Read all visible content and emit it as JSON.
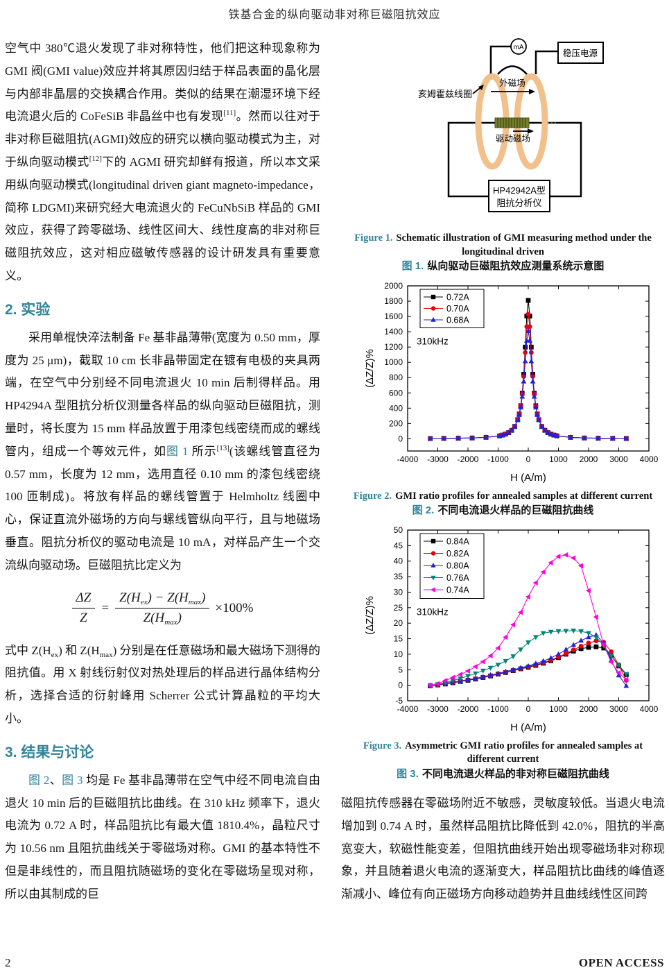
{
  "theme": {
    "accent_color": "#31849B"
  },
  "header": {
    "title": "铁基合金的纵向驱动非对称巨磁阻抗效应"
  },
  "footer": {
    "page_number": "2",
    "open_access": "OPEN ACCESS"
  },
  "left_column": {
    "flow": [
      {
        "type": "p",
        "indent": false,
        "segments": [
          {
            "text": "空气中 380℃退火发现了非对称特性，他们把这种现象称为 GMI 阀(GMI value)效应并将其原因归结于样品表面的晶化层与内部非晶层的交换耦合作用。类似的结果在潮湿环境下经电流退火后的 CoFeSiB 非晶丝中也有发现"
          },
          {
            "text": "[11]",
            "sup": true
          },
          {
            "text": "。然而以往对于非对称巨磁阻抗(AGMI)效应的研究以横向驱动模式为主，对于纵向驱动模式"
          },
          {
            "text": "[12]",
            "sup": true
          },
          {
            "text": "下的 AGMI 研究却鲜有报道，所以本文采用纵向驱动模式(longitudinal driven giant magneto-impedance，简称 LDGMI)来研究经大电流退火的 FeCuNbSiB 样品的 GMI 效应，获得了跨零磁场、线性区间大、线性度高的非对称巨磁阻抗效应，这对相应磁敏传感器的设计研发具有重要意义。"
          }
        ]
      },
      {
        "type": "h",
        "text": "2. 实验"
      },
      {
        "type": "p",
        "indent": true,
        "segments": [
          {
            "text": "采用单棍快淬法制备 Fe 基非晶薄带(宽度为 0.50 mm，厚度为 25 μm)，截取 10 cm 长非晶带固定在镀有电极的夹具两端，在空气中分别经不同电流退火 10 min 后制得样品。用 HP4294A 型阻抗分析仪测量各样品的纵向驱动巨磁阻抗，测量时，将长度为 15 mm 样品放置于用漆包线密绕而成的螺线管内，组成一个等效元件，如"
          },
          {
            "text": "图 1",
            "accent": true
          },
          {
            "text": " 所示"
          },
          {
            "text": "[13]",
            "sup": true
          },
          {
            "text": "(该螺线管直径为 0.57 mm，长度为 12 mm，选用直径 0.10 mm 的漆包线密绕 100 匝制成)。将放有样品的螺线管置于 Helmholtz 线圈中心，保证直流外磁场的方向与螺线管纵向平行，且与地磁场垂直。阻抗分析仪的驱动电流是 10 mA，对样品产生一个交流纵向驱动场。巨磁阻抗比定义为"
          }
        ]
      },
      {
        "type": "formula"
      },
      {
        "type": "p",
        "indent": false,
        "segments": [
          {
            "text": "式中 Z(H"
          },
          {
            "text": "ex",
            "sub": true
          },
          {
            "text": ") 和 Z(H"
          },
          {
            "text": "max",
            "sub": true
          },
          {
            "text": ") 分别是在任意磁场和最大磁场下测得的阻抗值。用 X 射线衍射仪对热处理后的样品进行晶体结构分析，选择合适的衍射峰用 Scherrer 公式计算晶粒的平均大小。"
          }
        ]
      },
      {
        "type": "h",
        "text": "3. 结果与讨论"
      },
      {
        "type": "p",
        "indent": true,
        "segments": [
          {
            "text": "图 2",
            "accent": true
          },
          {
            "text": "、"
          },
          {
            "text": "图 3",
            "accent": true
          },
          {
            "text": " 均是 Fe 基非晶薄带在空气中经不同电流自由退火 10 min 后的巨磁阻抗比曲线。在 310 kHz 频率下，退火电流为 0.72 A 时，样品阻抗比有最大值 1810.4%，晶粒尺寸为 10.56 nm 且阻抗曲线关于零磁场对称。GMI 的基本特性不但是非线性的，而且阻抗随磁场的变化在零磁场呈现对称，所以由其制成的巨"
          }
        ]
      }
    ],
    "formula": {
      "lhs_num": "ΔZ",
      "lhs_den": "Z",
      "equals": "=",
      "num_segments": [
        {
          "text": "Z(H"
        },
        {
          "text": "ex",
          "sub": true
        },
        {
          "text": ") − Z(H"
        },
        {
          "text": "max",
          "sub": true
        },
        {
          "text": ")"
        }
      ],
      "den_segments": [
        {
          "text": "Z(H"
        },
        {
          "text": "max",
          "sub": true
        },
        {
          "text": ")"
        }
      ],
      "suffix": "×100%"
    }
  },
  "right_column": {
    "paragraph_segments": [
      {
        "text": "磁阻抗传感器在零磁场附近不敏感，灵敏度较低。当退火电流增加到 0.74 A 时，虽然样品阻抗比降低到 42.0%，阻抗的半高宽变大，软磁性能变差，但阻抗曲线开始出现零磁场非对称现象，并且随着退火电流的逐渐变大，样品阻抗比曲线的峰值逐渐减小、峰位有向正磁场方向移动趋势并且曲线线性区间跨"
      }
    ]
  },
  "figures": {
    "fig1": {
      "label_en": "Figure 1.",
      "text_en": "Schematic illustration of GMI measuring method under the longitudinal driven",
      "label_zh": "图 1.",
      "text_zh": "纵向驱动巨磁阻抗效应测量系统示意图",
      "labels": {
        "ma_meter": "mA",
        "power_supply": "稳压电源",
        "helmholtz_coil": "亥姆霍兹线圈",
        "external_field": "外磁场",
        "driving_field": "驱动磁场",
        "analyzer_line1": "HP42942A型",
        "analyzer_line2": "阻抗分析仪"
      },
      "colors": {
        "coil": "#f2c08a",
        "solenoid": "#76812f"
      }
    },
    "fig2": {
      "label_en": "Figure 2.",
      "text_en": "GMI ratio profiles for annealed samples at different current",
      "label_zh": "图 2.",
      "text_zh": "不同电流退火样品的巨磁阻抗曲线"
    },
    "fig3": {
      "label_en": "Figure 3.",
      "text_en": "Asymmetric GMI ratio profiles for annealed samples at different current",
      "label_zh": "图 3.",
      "text_zh": "不同电流退火样品的非对称巨磁阻抗曲线"
    }
  },
  "chart_data": [
    {
      "name": "figure2",
      "type": "line",
      "xlabel": "H (A/m)",
      "ylabel": "(ΔZ/Z)%",
      "annotation": "310kHz",
      "legend_position": "top-left",
      "grid": false,
      "xlim": [
        -4000,
        4000
      ],
      "ylim": [
        -160,
        2000
      ],
      "xticks": [
        -4000,
        -3000,
        -2000,
        -1000,
        0,
        1000,
        2000,
        3000,
        4000
      ],
      "yticks": [
        0,
        200,
        400,
        600,
        800,
        1000,
        1200,
        1400,
        1600,
        1800,
        2000
      ],
      "x": [
        -3250,
        -2800,
        -2320,
        -1860,
        -1400,
        -950,
        -850,
        -750,
        -650,
        -550,
        -450,
        -350,
        -300,
        -250,
        -200,
        -150,
        -100,
        -50,
        0,
        50,
        100,
        150,
        200,
        250,
        300,
        350,
        450,
        550,
        650,
        750,
        850,
        950,
        1400,
        1860,
        2320,
        2800,
        3250
      ],
      "series": [
        {
          "name": "0.72A",
          "color": "#000000",
          "marker": "square",
          "values": [
            3,
            5,
            7,
            10,
            18,
            38,
            48,
            61,
            80,
            110,
            160,
            250,
            324,
            432,
            595,
            843,
            1199,
            1605,
            1810,
            1605,
            1199,
            843,
            595,
            432,
            324,
            250,
            160,
            110,
            80,
            61,
            48,
            38,
            18,
            10,
            7,
            5,
            3
          ]
        },
        {
          "name": "0.70A",
          "color": "#e60012",
          "marker": "circle",
          "values": [
            3,
            5,
            7,
            11,
            19,
            40,
            49,
            63,
            82,
            113,
            163,
            253,
            326,
            431,
            586,
            815,
            1129,
            1467,
            1630,
            1467,
            1129,
            815,
            586,
            431,
            326,
            253,
            163,
            113,
            82,
            63,
            49,
            40,
            19,
            11,
            7,
            5,
            3
          ]
        },
        {
          "name": "0.68A",
          "color": "#2222d8",
          "marker": "triangle-up",
          "values": [
            3,
            5,
            7,
            10,
            18,
            39,
            48,
            61,
            81,
            110,
            158,
            244,
            312,
            410,
            551,
            750,
            1014,
            1284,
            1410,
            1284,
            1014,
            750,
            551,
            410,
            312,
            244,
            158,
            110,
            81,
            61,
            48,
            39,
            18,
            10,
            7,
            5,
            3
          ]
        }
      ]
    },
    {
      "name": "figure3",
      "type": "line",
      "xlabel": "H (A/m)",
      "ylabel": "(ΔZ/Z)%",
      "annotation": "310kHz",
      "legend_position": "top-left",
      "grid": false,
      "xlim": [
        -4000,
        4000
      ],
      "ylim": [
        -5,
        50
      ],
      "xticks": [
        -4000,
        -3000,
        -2000,
        -1000,
        0,
        1000,
        2000,
        3000,
        4000
      ],
      "yticks": [
        -5,
        0,
        5,
        10,
        15,
        20,
        25,
        30,
        35,
        40,
        45,
        50
      ],
      "x": [
        -3250,
        -3000,
        -2750,
        -2500,
        -2250,
        -2000,
        -1750,
        -1500,
        -1250,
        -1000,
        -750,
        -500,
        -250,
        0,
        250,
        500,
        750,
        1000,
        1250,
        1500,
        1750,
        2000,
        2250,
        2500,
        2750,
        3000,
        3250
      ],
      "series": [
        {
          "name": "0.84A",
          "color": "#000000",
          "marker": "square",
          "values": [
            -0.2,
            0.1,
            0.4,
            0.8,
            1.2,
            1.6,
            2.0,
            2.5,
            3.0,
            3.6,
            4.1,
            4.7,
            5.3,
            5.8,
            6.4,
            7.1,
            7.9,
            8.9,
            10.0,
            11.0,
            11.8,
            12.2,
            12.4,
            12.0,
            9.5,
            6.2,
            3.4
          ]
        },
        {
          "name": "0.82A",
          "color": "#e60012",
          "marker": "circle",
          "values": [
            -0.2,
            0.2,
            0.5,
            0.9,
            1.3,
            1.7,
            2.1,
            2.6,
            3.1,
            3.7,
            4.2,
            4.8,
            5.4,
            6.0,
            6.6,
            7.3,
            8.1,
            9.1,
            10.2,
            11.4,
            12.6,
            13.6,
            14.3,
            13.9,
            10.8,
            6.6,
            1.6
          ]
        },
        {
          "name": "0.80A",
          "color": "#2222d8",
          "marker": "triangle-up",
          "values": [
            0.0,
            0.3,
            0.6,
            1.0,
            1.4,
            1.8,
            2.2,
            2.7,
            3.3,
            3.8,
            4.4,
            5.0,
            5.6,
            6.2,
            7.0,
            7.8,
            8.8,
            10.0,
            11.5,
            13.0,
            14.4,
            15.5,
            16.2,
            13.5,
            8.0,
            3.2,
            -0.2
          ]
        },
        {
          "name": "0.76A",
          "color": "#008577",
          "marker": "triangle-down",
          "values": [
            0.0,
            0.3,
            0.8,
            1.5,
            2.2,
            3.0,
            3.8,
            4.7,
            5.6,
            6.6,
            7.8,
            9.3,
            11.5,
            13.8,
            15.5,
            16.8,
            17.2,
            17.4,
            17.5,
            17.6,
            17.4,
            16.8,
            15.5,
            12.8,
            9.5,
            6.5,
            3.6
          ]
        },
        {
          "name": "0.74A",
          "color": "#ff00dd",
          "marker": "triangle-left",
          "values": [
            0.0,
            0.5,
            1.5,
            2.5,
            3.5,
            4.6,
            6.0,
            7.6,
            9.5,
            12.0,
            15.5,
            19.5,
            23.5,
            28.5,
            33.0,
            36.5,
            39.5,
            41.5,
            42.0,
            41.0,
            38.5,
            30.5,
            22.0,
            13.0,
            7.5,
            4.0,
            1.8
          ]
        }
      ]
    }
  ]
}
